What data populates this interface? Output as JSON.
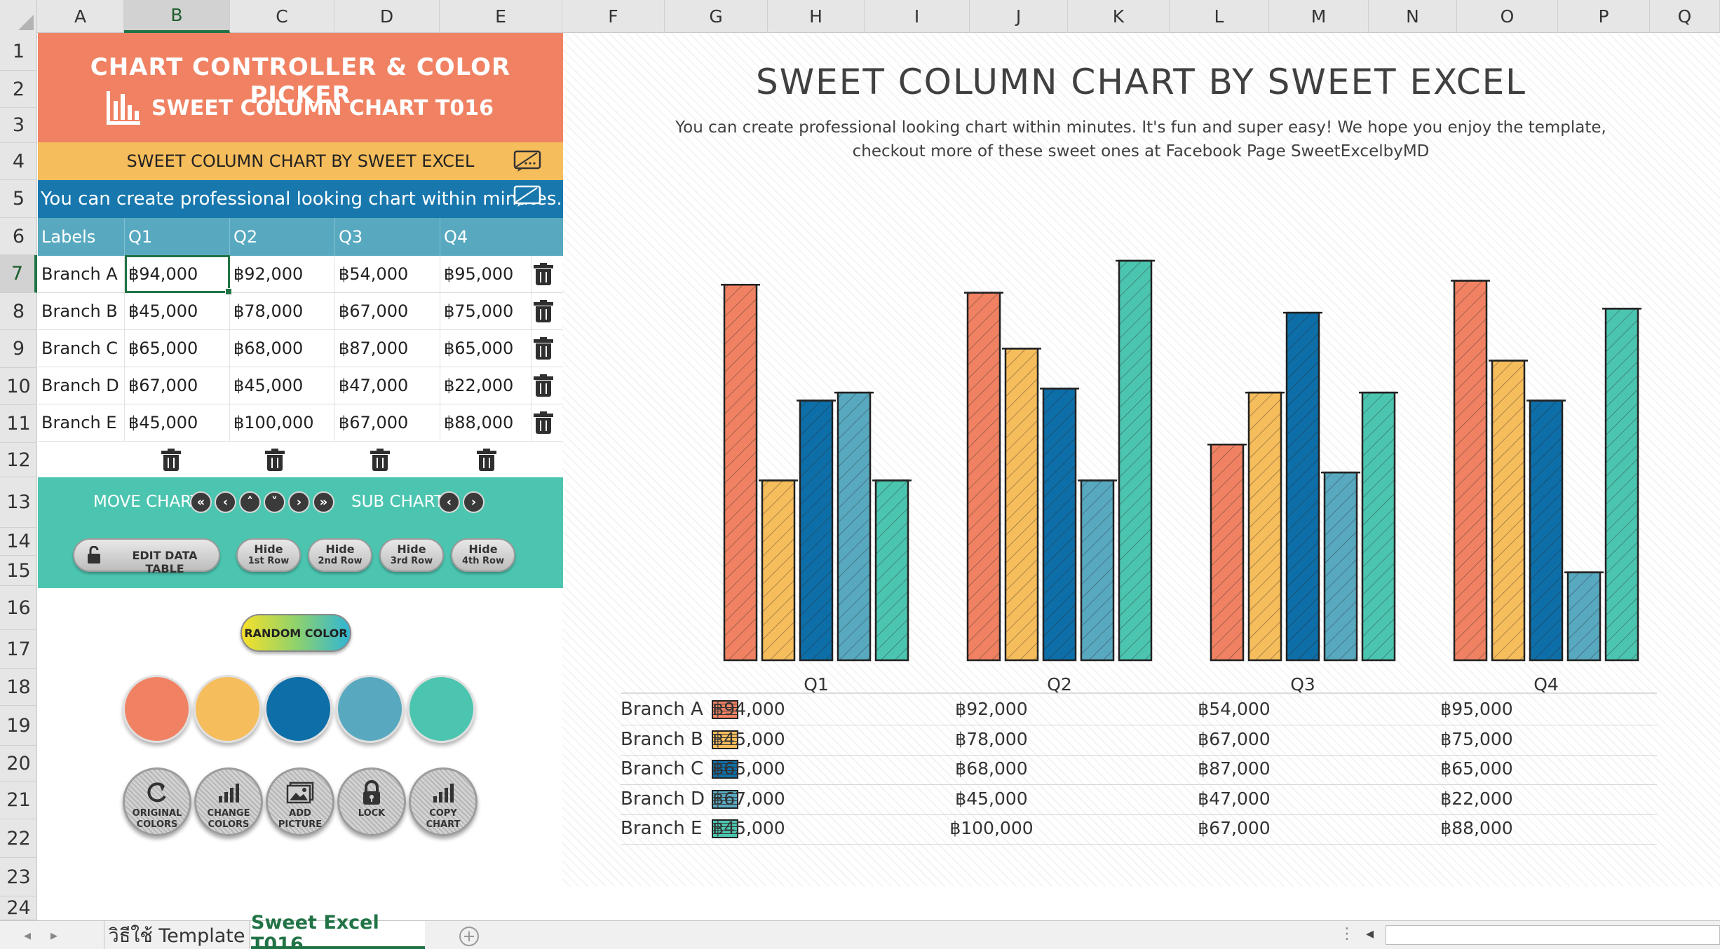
{
  "columns": [
    "A",
    "B",
    "C",
    "D",
    "E",
    "F",
    "G",
    "H",
    "I",
    "J",
    "K",
    "L",
    "M",
    "N",
    "O",
    "P",
    "Q"
  ],
  "rows": [
    "1",
    "2",
    "3",
    "4",
    "5",
    "6",
    "7",
    "8",
    "9",
    "10",
    "11",
    "12",
    "13",
    "14",
    "15",
    "16",
    "17",
    "18",
    "19",
    "20",
    "21",
    "22",
    "23",
    "24"
  ],
  "panel": {
    "title": "CHART CONTROLLER & COLOR PICKER",
    "subtitle": "SWEET COLUMN CHART T016",
    "chart_title_cell": "SWEET COLUMN CHART BY SWEET EXCEL",
    "description_cell": "You can create professional looking chart within minutes. It's fun",
    "table_headers": [
      "Labels",
      "Q1",
      "Q2",
      "Q3",
      "Q4"
    ],
    "table_rows": [
      [
        "Branch A",
        "฿94,000",
        "฿92,000",
        "฿54,000",
        "฿95,000"
      ],
      [
        "Branch B",
        "฿45,000",
        "฿78,000",
        "฿67,000",
        "฿75,000"
      ],
      [
        "Branch C",
        "฿65,000",
        "฿68,000",
        "฿87,000",
        "฿65,000"
      ],
      [
        "Branch D",
        "฿67,000",
        "฿45,000",
        "฿47,000",
        "฿22,000"
      ],
      [
        "Branch E",
        "฿45,000",
        "฿100,000",
        "฿67,000",
        "฿88,000"
      ]
    ],
    "move_chart_label": "MOVE CHART",
    "sub_chart_label": "SUB CHART",
    "edit_button": "EDIT DATA TABLE",
    "hide_buttons": [
      [
        "Hide",
        "1st Row"
      ],
      [
        "Hide",
        "2nd Row"
      ],
      [
        "Hide",
        "3rd Row"
      ],
      [
        "Hide",
        "4th Row"
      ]
    ],
    "random_color": "RANDOM COLOR",
    "swatches": [
      "#f08263",
      "#f6bd5c",
      "#0e6ea8",
      "#58a9c0",
      "#4cc5b0"
    ],
    "round_buttons": [
      [
        "ORIGINAL",
        "COLORS"
      ],
      [
        "CHANGE",
        "COLORS"
      ],
      [
        "ADD",
        "PICTURE"
      ],
      [
        "LOCK"
      ],
      [
        "COPY",
        "CHART"
      ]
    ]
  },
  "chart_title": "SWEET COLUMN CHART BY SWEET EXCEL",
  "chart_subtitle_1": "You can create professional looking chart within minutes. It's fun and super easy! We hope you enjoy the template,",
  "chart_subtitle_2": "checkout more of these sweet ones at Facebook Page SweetExcelbyMD",
  "chart_data": {
    "type": "bar",
    "categories": [
      "Q1",
      "Q2",
      "Q3",
      "Q4"
    ],
    "series": [
      {
        "name": "Branch A",
        "color": "#f08263",
        "values": [
          94000,
          92000,
          54000,
          95000
        ],
        "labels": [
          "฿94,000",
          "฿92,000",
          "฿54,000",
          "฿95,000"
        ]
      },
      {
        "name": "Branch B",
        "color": "#f6bd5c",
        "values": [
          45000,
          78000,
          67000,
          75000
        ],
        "labels": [
          "฿45,000",
          "฿78,000",
          "฿67,000",
          "฿75,000"
        ]
      },
      {
        "name": "Branch C",
        "color": "#0e6ea8",
        "values": [
          65000,
          68000,
          87000,
          65000
        ],
        "labels": [
          "฿65,000",
          "฿68,000",
          "฿87,000",
          "฿65,000"
        ]
      },
      {
        "name": "Branch D",
        "color": "#58a9c0",
        "values": [
          67000,
          45000,
          47000,
          22000
        ],
        "labels": [
          "฿67,000",
          "฿45,000",
          "฿47,000",
          "฿22,000"
        ]
      },
      {
        "name": "Branch E",
        "color": "#4cc5b0",
        "values": [
          45000,
          100000,
          67000,
          88000
        ],
        "labels": [
          "฿45,000",
          "฿100,000",
          "฿67,000",
          "฿88,000"
        ]
      }
    ],
    "ylim": [
      0,
      100000
    ]
  },
  "tabs": [
    "วิธีใช้ Template",
    "Sweet Excel T016"
  ]
}
